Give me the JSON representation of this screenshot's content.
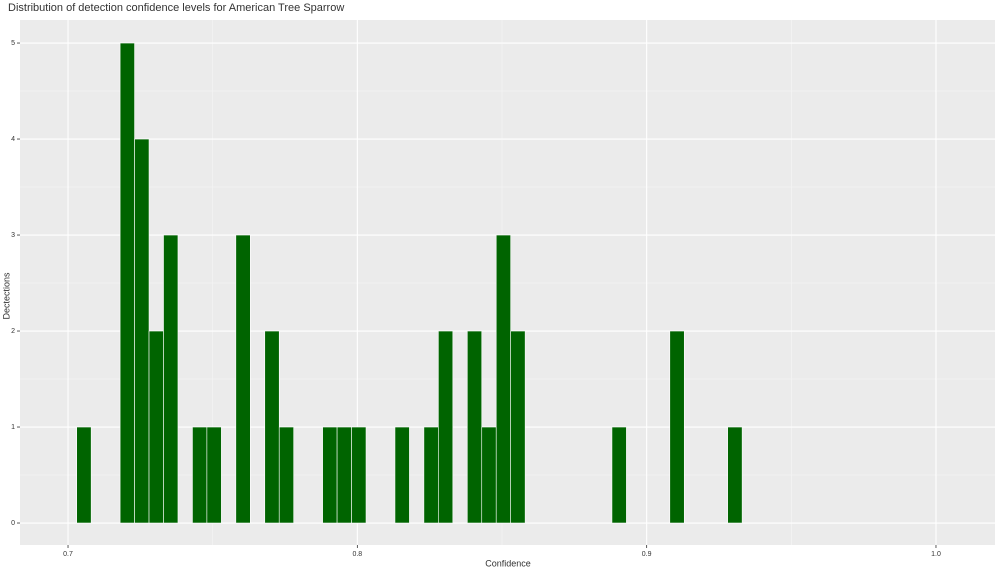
{
  "chart_data": {
    "type": "histogram",
    "title": "Distribution of detection confidence levels for American Tree Sparrow",
    "xlabel": "Confidence",
    "ylabel": "Dectections",
    "bins": [
      0.703,
      0.708,
      0.713,
      0.718,
      0.723,
      0.728,
      0.733,
      0.738,
      0.743,
      0.748,
      0.753,
      0.758,
      0.763,
      0.768,
      0.773,
      0.778,
      0.783,
      0.788,
      0.793,
      0.798,
      0.803,
      0.808,
      0.813,
      0.818,
      0.823,
      0.828,
      0.833,
      0.838,
      0.843,
      0.848,
      0.853,
      0.858,
      0.863,
      0.868,
      0.873,
      0.878,
      0.883,
      0.888,
      0.893,
      0.898,
      0.903,
      0.908,
      0.913,
      0.918,
      0.923,
      0.928,
      0.933
    ],
    "values": [
      1,
      0,
      0,
      5,
      4,
      2,
      3,
      0,
      1,
      1,
      0,
      3,
      0,
      2,
      1,
      0,
      0,
      1,
      1,
      1,
      0,
      0,
      1,
      0,
      1,
      2,
      0,
      2,
      1,
      3,
      2,
      0,
      0,
      0,
      0,
      0,
      0,
      1,
      0,
      0,
      0,
      2,
      0,
      0,
      0,
      1
    ],
    "color": "#006400",
    "xlim": [
      0.6834,
      1.0204
    ],
    "ylim": [
      -0.229,
      5.24
    ],
    "xticks": [
      0.7,
      0.8,
      0.9,
      {
        "value": 1.0,
        "label": "1.0"
      }
    ],
    "yticks": [
      0,
      1,
      2,
      3,
      4,
      5
    ],
    "grid": true
  }
}
